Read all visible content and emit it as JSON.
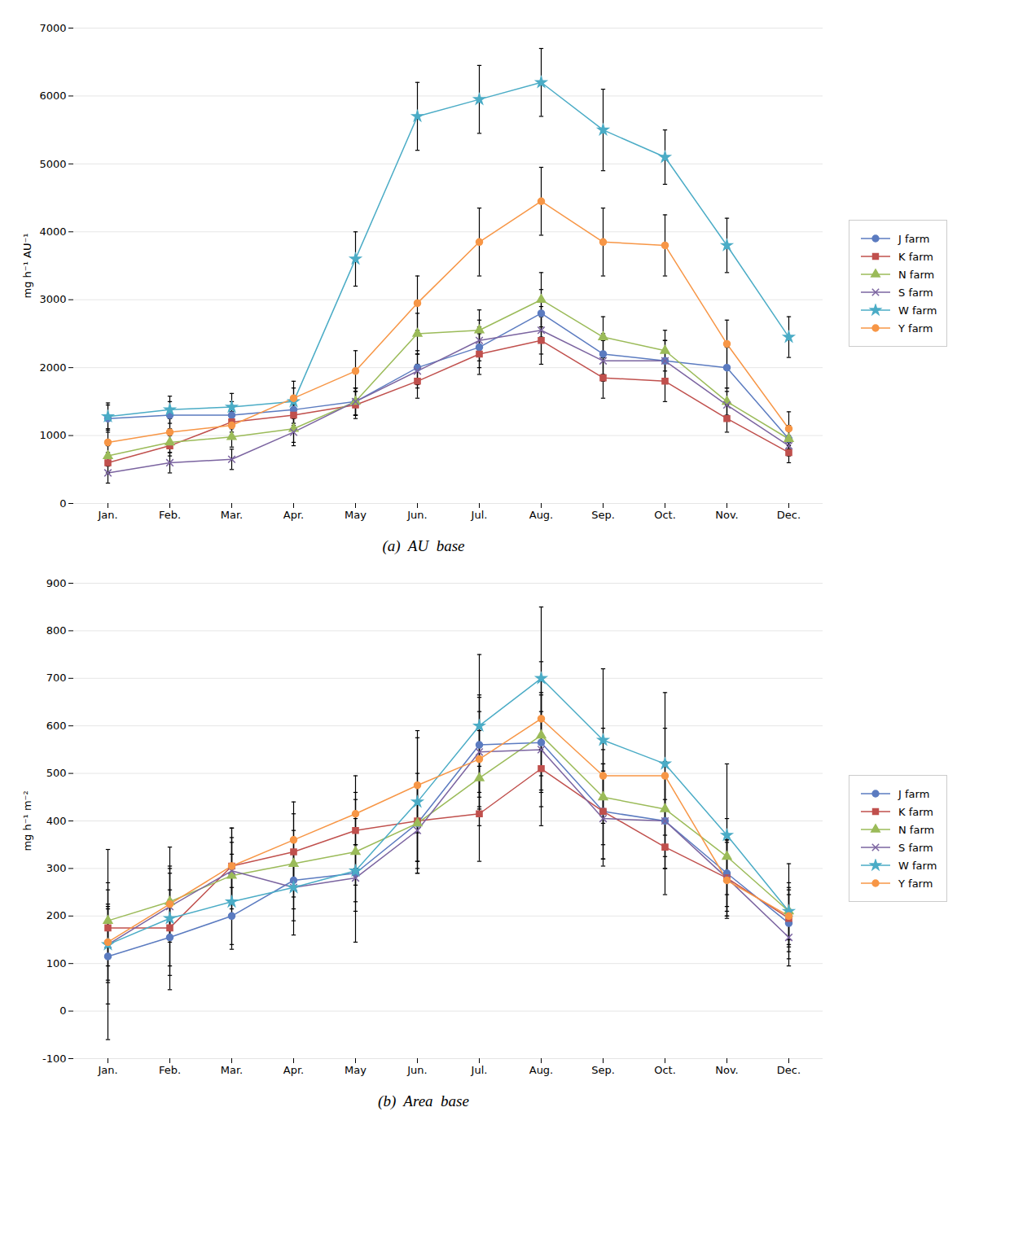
{
  "chart_data": [
    {
      "type": "line",
      "caption": "(a)  AU  base",
      "ylabel": "mg h⁻¹ AU⁻¹",
      "categories": [
        "Jan.",
        "Feb.",
        "Mar.",
        "Apr.",
        "May",
        "Jun.",
        "Jul.",
        "Aug.",
        "Sep.",
        "Oct.",
        "Nov.",
        "Dec."
      ],
      "ylim": [
        0,
        7000
      ],
      "yticks": [
        0,
        1000,
        2000,
        3000,
        4000,
        5000,
        6000,
        7000
      ],
      "grid": true,
      "legend": "right",
      "series": [
        {
          "name": "J farm",
          "color": "#5B7BC0",
          "marker": "circle",
          "values": [
            1250,
            1300,
            1300,
            1380,
            1500,
            2000,
            2300,
            2800,
            2200,
            2100,
            2000,
            950
          ],
          "errors": [
            200,
            200,
            200,
            200,
            200,
            250,
            300,
            350,
            300,
            300,
            300,
            200
          ]
        },
        {
          "name": "K farm",
          "color": "#C0504D",
          "marker": "square",
          "values": [
            600,
            850,
            1200,
            1300,
            1450,
            1800,
            2200,
            2400,
            1850,
            1800,
            1250,
            750
          ],
          "errors": [
            150,
            150,
            150,
            150,
            200,
            250,
            300,
            350,
            300,
            300,
            200,
            150
          ]
        },
        {
          "name": "N farm",
          "color": "#9BBB59",
          "marker": "triangle",
          "values": [
            700,
            900,
            980,
            1100,
            1500,
            2500,
            2550,
            3000,
            2450,
            2250,
            1500,
            950
          ],
          "errors": [
            150,
            150,
            150,
            200,
            200,
            300,
            300,
            400,
            300,
            300,
            200,
            150
          ]
        },
        {
          "name": "S farm",
          "color": "#7B64A0",
          "marker": "x",
          "values": [
            450,
            600,
            650,
            1050,
            1500,
            1950,
            2400,
            2550,
            2100,
            2100,
            1450,
            850
          ],
          "errors": [
            150,
            150,
            150,
            200,
            200,
            250,
            300,
            350,
            300,
            300,
            200,
            150
          ]
        },
        {
          "name": "W farm",
          "color": "#4BACC6",
          "marker": "star",
          "values": [
            1280,
            1380,
            1420,
            1500,
            3600,
            5700,
            5950,
            6200,
            5500,
            5100,
            3800,
            2450
          ],
          "errors": [
            200,
            200,
            200,
            200,
            400,
            500,
            500,
            500,
            600,
            400,
            400,
            300
          ]
        },
        {
          "name": "Y farm",
          "color": "#F79646",
          "marker": "circle",
          "values": [
            900,
            1050,
            1150,
            1550,
            1950,
            2950,
            3850,
            4450,
            3850,
            3800,
            2350,
            1100
          ],
          "errors": [
            200,
            200,
            200,
            250,
            300,
            400,
            500,
            500,
            500,
            450,
            350,
            250
          ]
        }
      ]
    },
    {
      "type": "line",
      "caption": "(b)  Area  base",
      "ylabel": "mg h⁻¹ m⁻²",
      "categories": [
        "Jan.",
        "Feb.",
        "Mar.",
        "Apr.",
        "May",
        "Jun.",
        "Jul.",
        "Aug.",
        "Sep.",
        "Oct.",
        "Nov.",
        "Dec."
      ],
      "ylim": [
        -100,
        900
      ],
      "yticks": [
        -100,
        0,
        100,
        200,
        300,
        400,
        500,
        600,
        700,
        800,
        900
      ],
      "grid": true,
      "legend": "right",
      "series": [
        {
          "name": "J farm",
          "color": "#5B7BC0",
          "marker": "circle",
          "values": [
            115,
            155,
            200,
            275,
            290,
            395,
            560,
            565,
            420,
            400,
            290,
            185
          ],
          "errors": [
            100,
            80,
            60,
            60,
            60,
            80,
            100,
            100,
            100,
            100,
            80,
            60
          ]
        },
        {
          "name": "K farm",
          "color": "#C0504D",
          "marker": "square",
          "values": [
            175,
            175,
            305,
            335,
            380,
            400,
            415,
            510,
            420,
            345,
            280,
            195
          ],
          "errors": [
            80,
            80,
            80,
            80,
            80,
            100,
            100,
            120,
            100,
            100,
            80,
            60
          ]
        },
        {
          "name": "N farm",
          "color": "#9BBB59",
          "marker": "triangle",
          "values": [
            190,
            230,
            285,
            310,
            335,
            395,
            490,
            580,
            450,
            425,
            325,
            210
          ],
          "errors": [
            80,
            70,
            70,
            70,
            70,
            80,
            100,
            120,
            100,
            100,
            80,
            60
          ]
        },
        {
          "name": "S farm",
          "color": "#7B64A0",
          "marker": "x",
          "values": [
            140,
            220,
            295,
            260,
            280,
            380,
            545,
            550,
            405,
            400,
            280,
            155
          ],
          "errors": [
            80,
            70,
            70,
            70,
            70,
            90,
            120,
            120,
            100,
            100,
            80,
            60
          ]
        },
        {
          "name": "W farm",
          "color": "#4BACC6",
          "marker": "star",
          "values": [
            140,
            195,
            230,
            260,
            295,
            440,
            600,
            700,
            570,
            520,
            370,
            210
          ],
          "errors": [
            200,
            150,
            100,
            100,
            150,
            150,
            150,
            150,
            150,
            150,
            150,
            100
          ]
        },
        {
          "name": "Y farm",
          "color": "#F79646",
          "marker": "circle",
          "values": [
            145,
            225,
            305,
            360,
            415,
            475,
            530,
            615,
            495,
            495,
            275,
            200
          ],
          "errors": [
            80,
            80,
            80,
            80,
            80,
            100,
            100,
            120,
            100,
            100,
            80,
            60
          ]
        }
      ]
    }
  ]
}
